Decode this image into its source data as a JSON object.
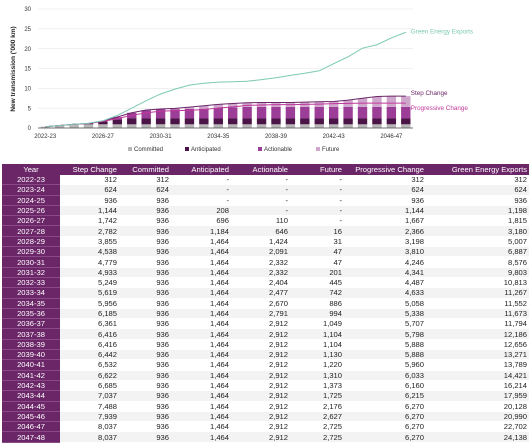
{
  "chart_data": {
    "type": "bar+line",
    "ylabel": "New transmission ('000 km)",
    "ylim": [
      0,
      30
    ],
    "yticks": [
      0,
      5,
      10,
      15,
      20,
      25,
      30
    ],
    "categories": [
      "2022-23",
      "2023-24",
      "2024-25",
      "2025-26",
      "2026-27",
      "2027-28",
      "2028-29",
      "2029-30",
      "2030-31",
      "2031-32",
      "2032-33",
      "2033-34",
      "2034-35",
      "2035-36",
      "2036-37",
      "2037-38",
      "2038-39",
      "2039-40",
      "2040-41",
      "2041-42",
      "2042-43",
      "2043-44",
      "2044-45",
      "2045-46",
      "2046-47",
      "2047-48"
    ],
    "xtick_labels": [
      "2022-23",
      "2026-27",
      "2030-31",
      "2034-35",
      "2038-39",
      "2042-43",
      "2046-47"
    ],
    "bar_series": [
      {
        "name": "Committed",
        "color": "#b7b7b7",
        "values": [
          0.312,
          0.624,
          0.936,
          0.936,
          0.936,
          0.936,
          0.936,
          0.936,
          0.936,
          0.936,
          0.936,
          0.936,
          0.936,
          0.936,
          0.936,
          0.936,
          0.936,
          0.936,
          0.936,
          0.936,
          0.936,
          0.936,
          0.936,
          0.936,
          0.936,
          0.936
        ]
      },
      {
        "name": "Anticipated",
        "color": "#4a1446",
        "values": [
          0,
          0,
          0,
          0.208,
          0.696,
          1.184,
          1.464,
          1.464,
          1.464,
          1.464,
          1.464,
          1.464,
          1.464,
          1.464,
          1.464,
          1.464,
          1.464,
          1.464,
          1.464,
          1.464,
          1.464,
          1.464,
          1.464,
          1.464,
          1.464,
          1.464
        ]
      },
      {
        "name": "Actionable",
        "color": "#9c3d97",
        "values": [
          0,
          0,
          0,
          0,
          0.11,
          0.646,
          1.424,
          2.091,
          2.332,
          2.332,
          2.404,
          2.477,
          2.67,
          2.791,
          2.912,
          2.912,
          2.912,
          2.912,
          2.912,
          2.912,
          2.912,
          2.912,
          2.912,
          2.912,
          2.912,
          2.912
        ]
      },
      {
        "name": "Future",
        "color": "#cfa7cc",
        "values": [
          0,
          0,
          0,
          0,
          0,
          0.016,
          0.031,
          0.047,
          0.047,
          0.201,
          0.445,
          0.742,
          0.886,
          0.994,
          1.049,
          1.104,
          1.104,
          1.13,
          1.22,
          1.31,
          1.373,
          1.725,
          2.176,
          2.627,
          2.725,
          2.725
        ]
      }
    ],
    "line_series": [
      {
        "name": "Step Change",
        "color": "#6b2668",
        "values": [
          0.312,
          0.624,
          0.936,
          1.144,
          1.742,
          2.782,
          3.855,
          4.538,
          4.779,
          4.933,
          5.249,
          5.619,
          5.956,
          6.185,
          6.361,
          6.416,
          6.416,
          6.442,
          6.532,
          6.622,
          6.685,
          7.037,
          7.488,
          7.939,
          8.037,
          8.037
        ]
      },
      {
        "name": "Progressive Change",
        "color": "#c0389b",
        "values": [
          0.312,
          0.624,
          0.936,
          1.144,
          1.667,
          2.366,
          3.198,
          3.81,
          4.246,
          4.341,
          4.487,
          4.633,
          5.058,
          5.338,
          5.707,
          5.798,
          5.888,
          5.888,
          5.96,
          6.033,
          6.16,
          6.215,
          6.27,
          6.27,
          6.27,
          6.27
        ]
      },
      {
        "name": "Green Energy Exports",
        "color": "#7cc9b4",
        "values": [
          0.312,
          0.624,
          0.936,
          1.198,
          1.815,
          3.18,
          5.007,
          6.887,
          8.576,
          9.803,
          10.813,
          11.267,
          11.552,
          11.673,
          11.794,
          12.186,
          12.656,
          13.271,
          13.789,
          14.421,
          16.214,
          17.959,
          20.128,
          20.99,
          22.702,
          24.138
        ]
      }
    ],
    "line_labels": [
      {
        "series": "Green Energy Exports",
        "text": "Green Energy Exports"
      },
      {
        "series": "Step Change",
        "text": "Step Change"
      },
      {
        "series": "Progressive Change",
        "text": "Progressive Change"
      }
    ],
    "legend": {
      "placement": "bottom",
      "items": [
        "Committed",
        "Anticipated",
        "Actionable",
        "Future"
      ]
    }
  },
  "table": {
    "headers": [
      "Year",
      "Step Change",
      "Committed",
      "Anticipated",
      "Actionable",
      "Future",
      "Progressive Change",
      "Green Energy Exports"
    ],
    "rows": [
      [
        "2022-23",
        "312",
        "312",
        "-",
        "-",
        "-",
        "312",
        "312"
      ],
      [
        "2023-24",
        "624",
        "624",
        "-",
        "-",
        "-",
        "624",
        "624"
      ],
      [
        "2024-25",
        "936",
        "936",
        "-",
        "-",
        "-",
        "936",
        "936"
      ],
      [
        "2025-26",
        "1,144",
        "936",
        "208",
        "-",
        "-",
        "1,144",
        "1,198"
      ],
      [
        "2026-27",
        "1,742",
        "936",
        "696",
        "110",
        "-",
        "1,667",
        "1,815"
      ],
      [
        "2027-28",
        "2,782",
        "936",
        "1,184",
        "646",
        "16",
        "2,366",
        "3,180"
      ],
      [
        "2028-29",
        "3,855",
        "936",
        "1,464",
        "1,424",
        "31",
        "3,198",
        "5,007"
      ],
      [
        "2029-30",
        "4,538",
        "936",
        "1,464",
        "2,091",
        "47",
        "3,810",
        "6,887"
      ],
      [
        "2030-31",
        "4,779",
        "936",
        "1,464",
        "2,332",
        "47",
        "4,246",
        "8,576"
      ],
      [
        "2031-32",
        "4,933",
        "936",
        "1,464",
        "2,332",
        "201",
        "4,341",
        "9,803"
      ],
      [
        "2032-33",
        "5,249",
        "936",
        "1,464",
        "2,404",
        "445",
        "4,487",
        "10,813"
      ],
      [
        "2033-34",
        "5,619",
        "936",
        "1,464",
        "2,477",
        "742",
        "4,633",
        "11,267"
      ],
      [
        "2034-35",
        "5,956",
        "936",
        "1,464",
        "2,670",
        "886",
        "5,058",
        "11,552"
      ],
      [
        "2035-36",
        "6,185",
        "936",
        "1,464",
        "2,791",
        "994",
        "5,338",
        "11,673"
      ],
      [
        "2036-37",
        "6,361",
        "936",
        "1,464",
        "2,912",
        "1,049",
        "5,707",
        "11,794"
      ],
      [
        "2037-38",
        "6,416",
        "936",
        "1,464",
        "2,912",
        "1,104",
        "5,798",
        "12,186"
      ],
      [
        "2038-39",
        "6,416",
        "936",
        "1,464",
        "2,912",
        "1,104",
        "5,888",
        "12,656"
      ],
      [
        "2039-40",
        "6,442",
        "936",
        "1,464",
        "2,912",
        "1,130",
        "5,888",
        "13,271"
      ],
      [
        "2040-41",
        "6,532",
        "936",
        "1,464",
        "2,912",
        "1,220",
        "5,960",
        "13,789"
      ],
      [
        "2041-42",
        "6,622",
        "936",
        "1,464",
        "2,912",
        "1,310",
        "6,033",
        "14,421"
      ],
      [
        "2042-43",
        "6,685",
        "936",
        "1,464",
        "2,912",
        "1,373",
        "6,160",
        "16,214"
      ],
      [
        "2043-44",
        "7,037",
        "936",
        "1,464",
        "2,912",
        "1,725",
        "6,215",
        "17,959"
      ],
      [
        "2044-45",
        "7,488",
        "936",
        "1,464",
        "2,912",
        "2,176",
        "6,270",
        "20,128"
      ],
      [
        "2045-46",
        "7,939",
        "936",
        "1,464",
        "2,912",
        "2,627",
        "6,270",
        "20,990"
      ],
      [
        "2046-47",
        "8,037",
        "936",
        "1,464",
        "2,912",
        "2,725",
        "6,270",
        "22,702"
      ],
      [
        "2047-48",
        "8,037",
        "936",
        "1,464",
        "2,912",
        "2,725",
        "6,270",
        "24,138"
      ]
    ]
  }
}
